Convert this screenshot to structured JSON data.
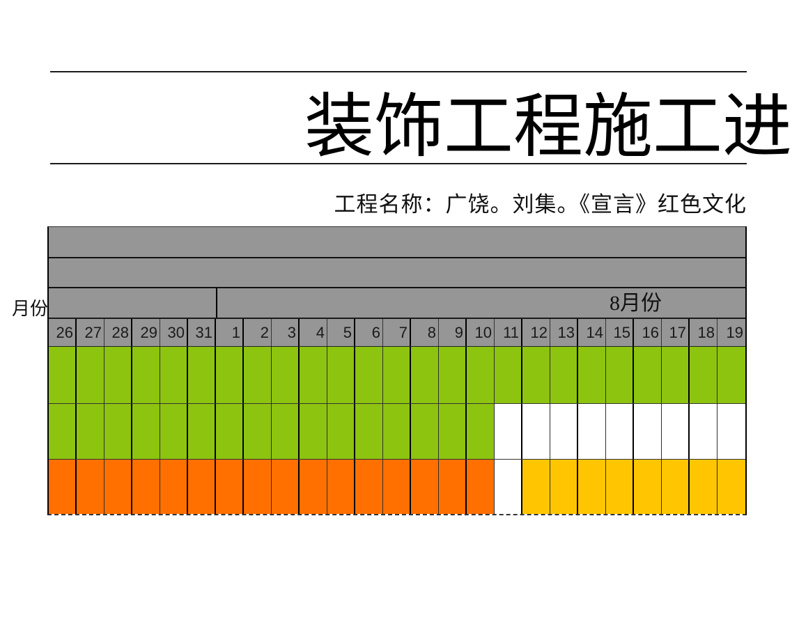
{
  "document": {
    "title": "装饰工程施工进",
    "project_line": "工程名称：广饶。刘集。《宣言》红色文化"
  },
  "chart_data": {
    "type": "gantt",
    "title": "装饰工程施工进",
    "subtitle": "工程名称：广饶。刘集。《宣言》红色文化",
    "axis_row_label": "月份",
    "month_sections": [
      {
        "label": "",
        "day_count": 6
      },
      {
        "label": "8月份",
        "day_count": 19
      }
    ],
    "days": [
      "26",
      "27",
      "28",
      "29",
      "30",
      "31",
      "1",
      "2",
      "3",
      "4",
      "5",
      "6",
      "7",
      "8",
      "9",
      "10",
      "11",
      "12",
      "13",
      "14",
      "15",
      "16",
      "17",
      "18",
      "19"
    ],
    "rows": [
      {
        "name": "task-bar-row-1",
        "cells": [
          "green",
          "green",
          "green",
          "green",
          "green",
          "green",
          "green",
          "green",
          "green",
          "green",
          "green",
          "green",
          "green",
          "green",
          "green",
          "green",
          "green",
          "green",
          "green",
          "green",
          "green",
          "green",
          "green",
          "green",
          "green"
        ]
      },
      {
        "name": "task-bar-row-2",
        "cells": [
          "green",
          "green",
          "green",
          "green",
          "green",
          "green",
          "green",
          "green",
          "green",
          "green",
          "green",
          "green",
          "green",
          "green",
          "green",
          "green",
          "white",
          "white",
          "white",
          "white",
          "white",
          "white",
          "white",
          "white",
          "white"
        ]
      },
      {
        "name": "task-bar-row-3",
        "cells": [
          "orange",
          "orange",
          "orange",
          "orange",
          "orange",
          "orange",
          "orange",
          "orange",
          "orange",
          "orange",
          "orange",
          "orange",
          "orange",
          "orange",
          "orange",
          "orange",
          "white",
          "gold",
          "gold",
          "gold",
          "gold",
          "gold",
          "gold",
          "gold",
          "gold"
        ]
      }
    ],
    "layout_hints": {
      "grid": true,
      "thick_grid_every_2_days": true,
      "month_divider_after_day": "31",
      "header_bands_empty": 2
    }
  },
  "colors": {
    "green": "#8DC40F",
    "orange": "#FF7000",
    "gold": "#FFC600",
    "white": "#FFFFFF",
    "header_gray": "#969696",
    "grid_dark": "#1A1A1A"
  }
}
